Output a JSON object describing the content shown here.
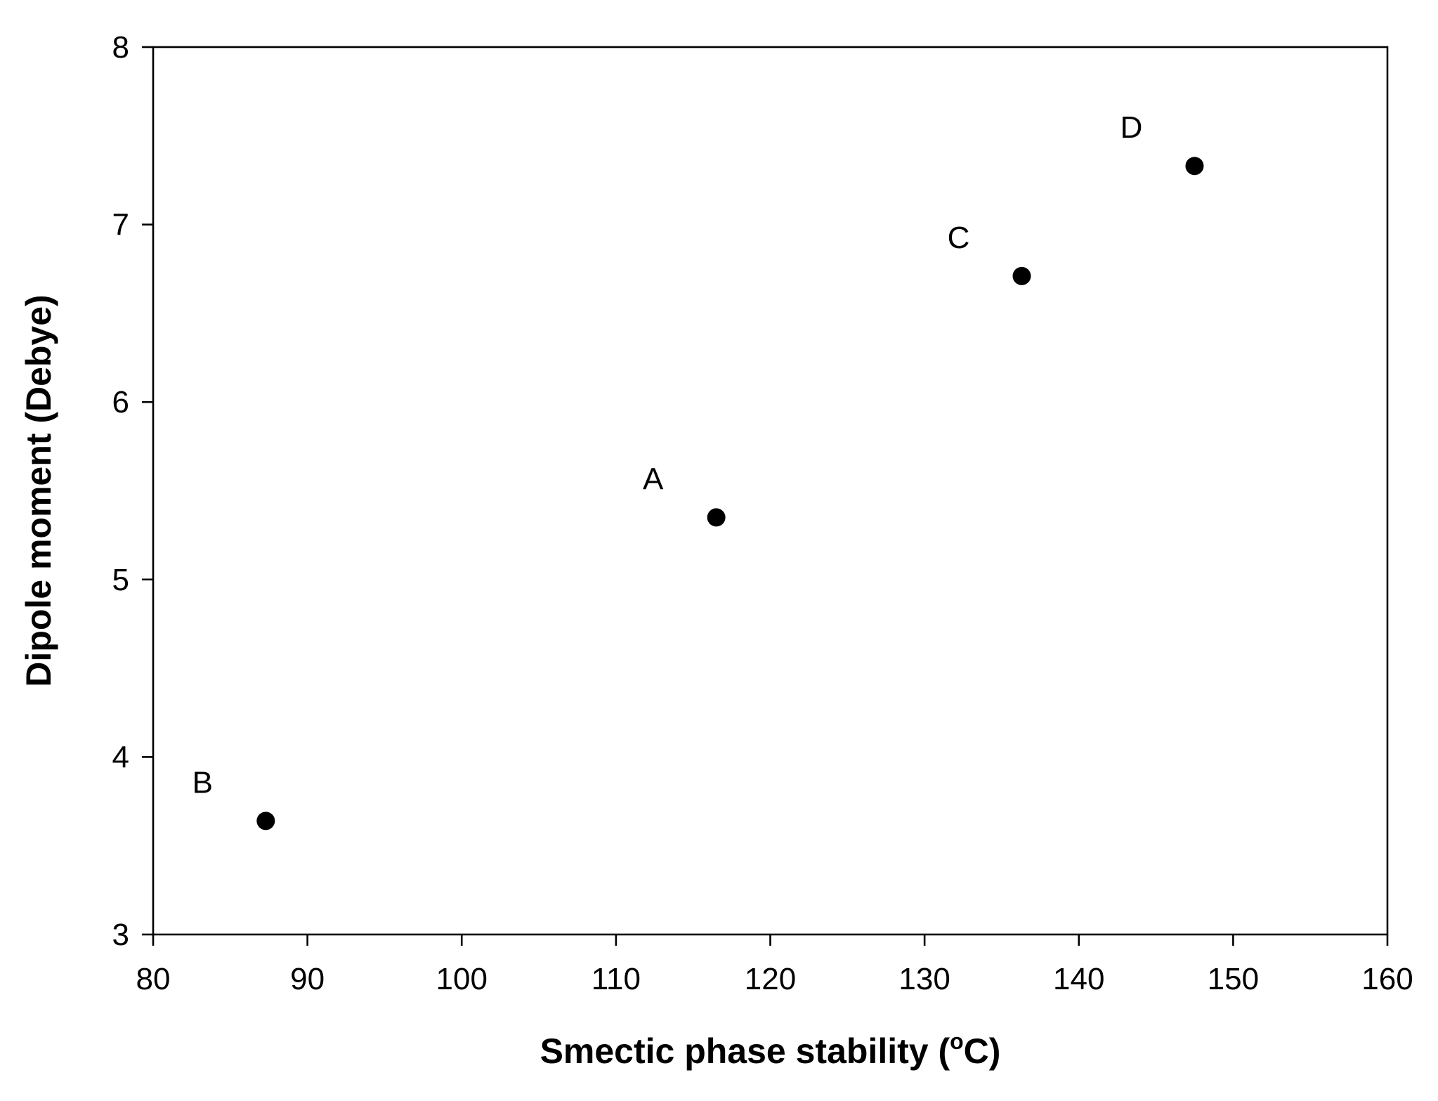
{
  "chart_data": {
    "type": "scatter",
    "title": "",
    "xlabel": "Smectic phase stability (",
    "xlabel_superscript": "o",
    "xlabel_suffix": "C)",
    "ylabel": "Dipole moment (Debye)",
    "xlim": [
      80,
      160
    ],
    "ylim": [
      3,
      8
    ],
    "xticks": [
      80,
      90,
      100,
      110,
      120,
      130,
      140,
      150,
      160
    ],
    "yticks": [
      3,
      4,
      5,
      6,
      7,
      8
    ],
    "xtick_labels": [
      "80",
      "90",
      "100",
      "110",
      "120",
      "130",
      "140",
      "150",
      "160"
    ],
    "ytick_labels": [
      "3",
      "4",
      "5",
      "6",
      "7",
      "8"
    ],
    "grid": false,
    "marker_color": "#000000",
    "points": [
      {
        "label": "A",
        "x": 116.5,
        "y": 5.35
      },
      {
        "label": "B",
        "x": 87.3,
        "y": 3.64
      },
      {
        "label": "C",
        "x": 136.3,
        "y": 6.71
      },
      {
        "label": "D",
        "x": 147.5,
        "y": 7.33
      }
    ]
  }
}
